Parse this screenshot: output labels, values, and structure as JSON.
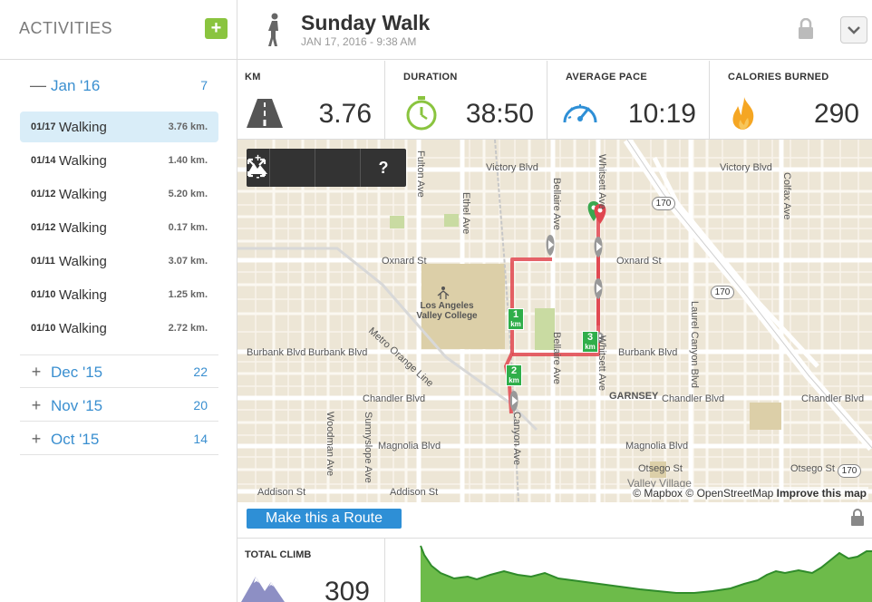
{
  "sidebar": {
    "title": "ACTIVITIES",
    "add_label": "+",
    "months": [
      {
        "sign": "—",
        "label": "Jan '16",
        "count": "7"
      },
      {
        "sign": "+",
        "label": "Dec '15",
        "count": "22"
      },
      {
        "sign": "+",
        "label": "Nov '15",
        "count": "20"
      },
      {
        "sign": "+",
        "label": "Oct '15",
        "count": "14"
      }
    ],
    "activities": [
      {
        "date": "01/17",
        "name": "Walking",
        "distance": "3.76 km."
      },
      {
        "date": "01/14",
        "name": "Walking",
        "distance": "1.40 km."
      },
      {
        "date": "01/12",
        "name": "Walking",
        "distance": "5.20 km."
      },
      {
        "date": "01/12",
        "name": "Walking",
        "distance": "0.17 km."
      },
      {
        "date": "01/11",
        "name": "Walking",
        "distance": "3.07 km."
      },
      {
        "date": "01/10",
        "name": "Walking",
        "distance": "1.25 km."
      },
      {
        "date": "01/10",
        "name": "Walking",
        "distance": "2.72 km."
      }
    ]
  },
  "header": {
    "title": "Sunday Walk",
    "subtitle": "JAN 17, 2016 - 9:38 AM",
    "icon": "walker-icon"
  },
  "stats": [
    {
      "label": "KM",
      "value": "3.76",
      "icon": "road-icon"
    },
    {
      "label": "DURATION",
      "value": "38:50",
      "icon": "stopwatch-icon"
    },
    {
      "label": "AVERAGE PACE",
      "value": "10:19",
      "icon": "speedometer-icon"
    },
    {
      "label": "CALORIES BURNED",
      "value": "290",
      "icon": "flame-icon"
    }
  ],
  "map": {
    "controls": {
      "zoom_in": "+",
      "zoom_out": "-",
      "help": "?"
    },
    "attribution": {
      "mapbox": "© Mapbox",
      "osm": "© OpenStreetMap",
      "improve": "Improve this map"
    },
    "labels": {
      "victory_blvd": "Victory Blvd",
      "victory_blvd_2": "Victory Blvd",
      "oxnard_st": "Oxnard St",
      "oxnard_st_2": "Oxnard St",
      "burbank_blvd": "Burbank Blvd",
      "burbank_blvd_2": "Burbank Blvd",
      "burbank_blvd_3": "Burbank Blvd",
      "chandler_blvd": "Chandler Blvd",
      "chandler_blvd_2": "Chandler Blvd",
      "chandler_blvd_3": "Chandler Blvd",
      "magnolia_blvd": "Magnolia Blvd",
      "magnolia_blvd_2": "Magnolia Blvd",
      "addison_st": "Addison St",
      "addison_st_2": "Addison St",
      "otsego_st": "Otsego St",
      "otsego_st_2": "Otsego St",
      "college": "Los Angeles Valley College",
      "garnsey": "GARNSEY",
      "valley_village": "Valley Village",
      "metro_orange": "Metro Orange Line",
      "fulton_ave": "Fulton Ave",
      "ethel_ave": "Ethel Ave",
      "bellaire_ave": "Bellaire Ave",
      "bellaire_ave_2": "Bellaire Ave",
      "whitsett_ave": "Whitsett Ave",
      "whitsett_ave_2": "Whitsett Ave",
      "laurel_canyon_blvd": "Laurel Canyon Blvd",
      "colfax_ave": "Colfax Ave",
      "woodman_ave": "Woodman Ave",
      "sunnyslope_ave": "Sunnyslope Ave",
      "canyon_ave": "Canyon Ave",
      "shield_170": "170"
    },
    "km_markers": [
      {
        "num": "1",
        "unit": "km"
      },
      {
        "num": "2",
        "unit": "km"
      },
      {
        "num": "3",
        "unit": "km"
      }
    ]
  },
  "route": {
    "button_label": "Make this a Route"
  },
  "climb": {
    "label": "TOTAL CLIMB",
    "value": "309",
    "icon": "mountain-icon"
  }
}
